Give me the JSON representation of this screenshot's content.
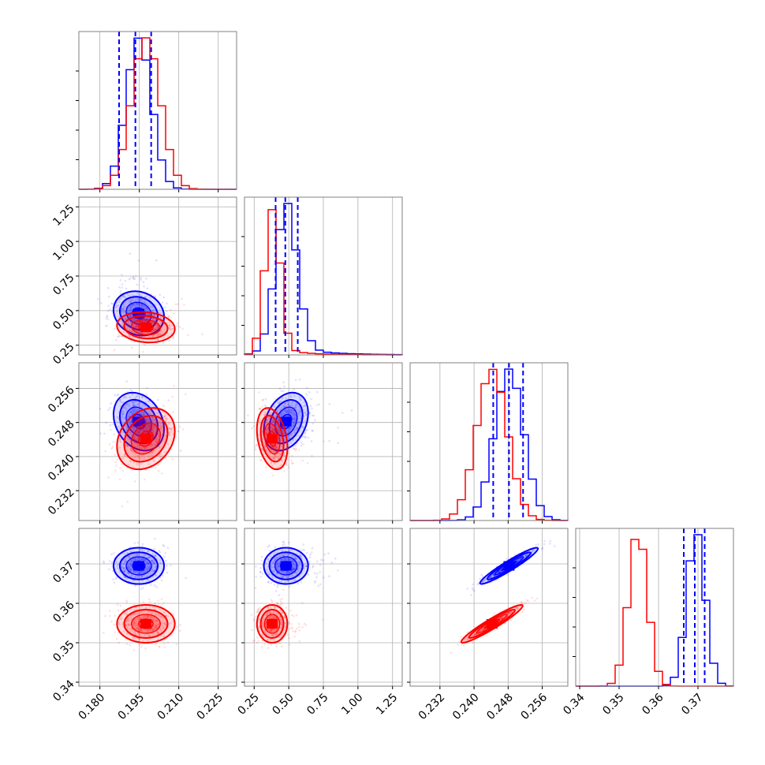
{
  "colors": {
    "series_a": "#0000ff",
    "series_b": "#ff0000",
    "grid": "#b0b0b0",
    "frame": "#808080"
  },
  "chart_data": {
    "type": "corner",
    "params": [
      {
        "range": [
          0.172,
          0.232
        ],
        "ticks": [
          0.18,
          0.195,
          0.21,
          0.225
        ],
        "tick_labels": [
          "0.180",
          "0.195",
          "0.210",
          "0.225"
        ],
        "a": {
          "mean": 0.1948,
          "sd": 0.0048
        },
        "b": {
          "mean": 0.1975,
          "sd": 0.0055
        }
      },
      {
        "range": [
          0.18,
          1.32
        ],
        "ticks": [
          0.25,
          0.5,
          0.75,
          1.0,
          1.25
        ],
        "tick_labels": [
          "0.25",
          "0.50",
          "0.75",
          "1.00",
          "1.25"
        ],
        "a": {
          "mean": 0.48,
          "sd": 0.08
        },
        "b": {
          "mean": 0.38,
          "sd": 0.055
        }
      },
      {
        "range": [
          0.225,
          0.262
        ],
        "ticks": [
          0.232,
          0.24,
          0.248,
          0.256
        ],
        "tick_labels": [
          "0.232",
          "0.240",
          "0.248",
          "0.256"
        ],
        "a": {
          "mean": 0.2482,
          "sd": 0.0034
        },
        "b": {
          "mean": 0.2442,
          "sd": 0.0036
        }
      },
      {
        "range": [
          0.339,
          0.379
        ],
        "ticks": [
          0.34,
          0.35,
          0.36,
          0.37
        ],
        "tick_labels": [
          "0.34",
          "0.35",
          "0.36",
          "0.37"
        ],
        "a": {
          "mean": 0.3695,
          "sd": 0.0023
        },
        "b": {
          "mean": 0.3548,
          "sd": 0.0024
        }
      }
    ],
    "correlations": [
      {
        "i": 1,
        "j": 0,
        "a": -0.15,
        "b": -0.12
      },
      {
        "i": 2,
        "j": 0,
        "a": -0.25,
        "b": 0.25
      },
      {
        "i": 2,
        "j": 1,
        "a": 0.3,
        "b": -0.3
      },
      {
        "i": 3,
        "j": 0,
        "a": 0.0,
        "b": 0.0
      },
      {
        "i": 3,
        "j": 1,
        "a": 0.0,
        "b": 0.0
      },
      {
        "i": 3,
        "j": 2,
        "a": 0.95,
        "b": 0.95
      }
    ],
    "quantile_lines": [
      {
        "param": 0,
        "values": [
          0.1873,
          0.1935,
          0.1995
        ]
      },
      {
        "param": 1,
        "values": [
          0.405,
          0.475,
          0.565
        ]
      },
      {
        "param": 2,
        "values": [
          0.2445,
          0.2482,
          0.2515
        ]
      },
      {
        "param": 3,
        "values": [
          0.3664,
          0.3692,
          0.3717
        ]
      }
    ],
    "grid": true,
    "legend": "none"
  }
}
